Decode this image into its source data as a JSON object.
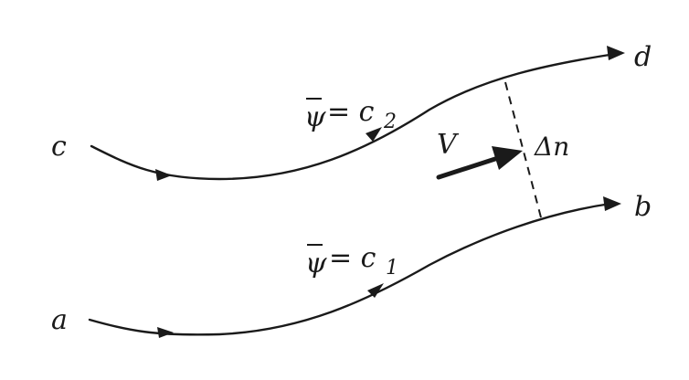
{
  "labels": {
    "c": "c",
    "d": "d",
    "a": "a",
    "b": "b",
    "psi_upper_symbol": "ψ",
    "psi_upper_eq": "= c",
    "psi_upper_sub": "2",
    "psi_lower_symbol": "ψ",
    "psi_lower_eq": "= c",
    "psi_lower_sub": "1",
    "velocity": "V",
    "delta_n": "Δn"
  }
}
